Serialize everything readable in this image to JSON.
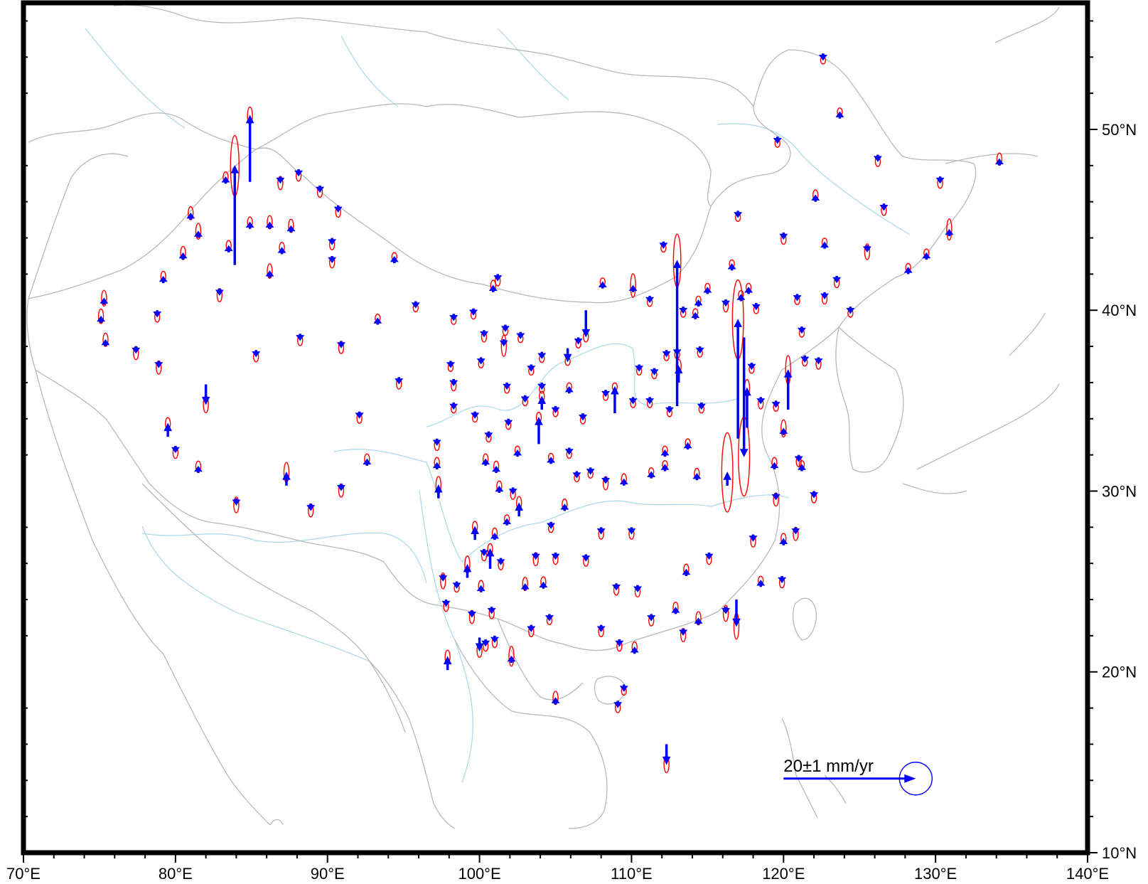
{
  "map": {
    "lon_range": [
      70,
      140
    ],
    "lat_range": [
      10,
      57
    ],
    "x_ticks": [
      {
        "lon": 70,
        "label": "70°E"
      },
      {
        "lon": 80,
        "label": "80°E"
      },
      {
        "lon": 90,
        "label": "90°E"
      },
      {
        "lon": 100,
        "label": "100°E"
      },
      {
        "lon": 110,
        "label": "110°E"
      },
      {
        "lon": 120,
        "label": "120°E"
      },
      {
        "lon": 130,
        "label": "130°E"
      },
      {
        "lon": 140,
        "label": "140°E"
      }
    ],
    "y_ticks": [
      {
        "lat": 10,
        "label": "10°N"
      },
      {
        "lat": 20,
        "label": "20°N"
      },
      {
        "lat": 30,
        "label": "30°N"
      },
      {
        "lat": 40,
        "label": "40°N"
      },
      {
        "lat": 50,
        "label": "50°N"
      }
    ],
    "colors": {
      "vector": "#0000ff",
      "ellipse": "#ff0000",
      "border": "#b8b8b8",
      "river": "#a8d8e8",
      "frame": "#000000"
    },
    "scale": {
      "label": "20±1 mm/yr",
      "lon": 120,
      "lat": 14.1,
      "length_mm_yr": 20
    }
  },
  "chart_data": {
    "type": "vector-field",
    "unit": "mm/yr",
    "description_fields": [
      "lon",
      "lat",
      "ve_mm_yr",
      "vn_mm_yr",
      "ellipse_semi_major_mm_yr"
    ],
    "stations": [
      [
        122.6,
        54.2,
        0,
        -1.0,
        0.6
      ],
      [
        123.7,
        50.6,
        0,
        1.0,
        0.6
      ],
      [
        119.6,
        49.6,
        0,
        -1.0,
        0.6
      ],
      [
        126.2,
        48.6,
        0,
        -1.0,
        0.8
      ],
      [
        130.3,
        47.4,
        0,
        -1.0,
        0.8
      ],
      [
        134.2,
        48.0,
        0,
        1.0,
        0.9
      ],
      [
        117.0,
        45.5,
        0,
        -1.0,
        0.6
      ],
      [
        122.1,
        46.0,
        0,
        1.0,
        0.8
      ],
      [
        126.6,
        45.9,
        0,
        -1.0,
        0.8
      ],
      [
        130.9,
        44.1,
        0,
        1.0,
        1.6
      ],
      [
        120.0,
        44.3,
        0,
        -1.0,
        0.8
      ],
      [
        122.7,
        43.4,
        0,
        1.0,
        0.6
      ],
      [
        125.5,
        43.6,
        0,
        -1.0,
        1.2
      ],
      [
        129.4,
        42.8,
        0,
        1.0,
        0.6
      ],
      [
        112.1,
        43.8,
        0,
        -1.0,
        0.6
      ],
      [
        128.2,
        42.0,
        0,
        1.0,
        0.6
      ],
      [
        123.5,
        41.9,
        0,
        -1.0,
        0.8
      ],
      [
        120.9,
        40.9,
        0,
        -1.0,
        0.6
      ],
      [
        122.7,
        41.0,
        0,
        -1.0,
        0.8
      ],
      [
        124.4,
        40.2,
        0,
        -1.0,
        0.6
      ],
      [
        121.2,
        39.1,
        0,
        -1.0,
        0.6
      ],
      [
        122.3,
        37.4,
        0,
        -1.0,
        0.8
      ],
      [
        121.4,
        37.5,
        0,
        -1.0,
        0.6
      ],
      [
        119.5,
        35.0,
        0,
        -1.0,
        0.6
      ],
      [
        116.6,
        42.2,
        0,
        1.0,
        0.6
      ],
      [
        115.0,
        40.9,
        0,
        1.0,
        0.6
      ],
      [
        116.2,
        40.6,
        0,
        -1.0,
        0.9
      ],
      [
        117.2,
        40.5,
        0,
        1.0,
        0.6
      ],
      [
        117.7,
        40.9,
        0,
        1.0,
        0.6
      ],
      [
        118.2,
        40.4,
        0,
        -1.0,
        0.6
      ],
      [
        117.9,
        37.1,
        0,
        -1.0,
        0.6
      ],
      [
        118.5,
        35.2,
        0,
        -1.0,
        0.8
      ],
      [
        120.3,
        34.5,
        0,
        6.0,
        2.2
      ],
      [
        120.0,
        33.1,
        0,
        1.0,
        1.3
      ],
      [
        121.0,
        32.0,
        0,
        -1.0,
        0.8
      ],
      [
        121.2,
        31.1,
        0,
        1.0,
        0.6
      ],
      [
        122.0,
        30.0,
        0,
        -1.0,
        0.8
      ],
      [
        119.4,
        31.2,
        0,
        1.0,
        0.8
      ],
      [
        119.5,
        29.9,
        0,
        -1.0,
        1.0
      ],
      [
        120.8,
        28.0,
        0,
        -1.0,
        1.0
      ],
      [
        120.0,
        27.0,
        0,
        1.0,
        0.8
      ],
      [
        119.9,
        25.3,
        0,
        -1.0,
        0.8
      ],
      [
        118.0,
        27.6,
        0,
        -1.0,
        0.9
      ],
      [
        118.5,
        24.7,
        0,
        1.0,
        0.6
      ],
      [
        117.6,
        33.5,
        0,
        6.0,
        1.3
      ],
      [
        117.0,
        32.9,
        0,
        18.0,
        6.0
      ],
      [
        116.3,
        30.3,
        0,
        2.0,
        6.0
      ],
      [
        117.4,
        38.5,
        0,
        -18.0,
        6.0
      ],
      [
        116.9,
        24.0,
        0,
        -4.0,
        2.0
      ],
      [
        116.2,
        23.6,
        0,
        -1.0,
        1.2
      ],
      [
        114.4,
        40.2,
        0,
        1.0,
        0.6
      ],
      [
        113.4,
        40.2,
        0,
        -1.0,
        0.6
      ],
      [
        114.2,
        39.5,
        0,
        1.0,
        0.6
      ],
      [
        114.5,
        38.0,
        0,
        -1.0,
        0.6
      ],
      [
        113.0,
        37.9,
        0,
        -1.0,
        0.6
      ],
      [
        112.3,
        37.8,
        0,
        -1.0,
        0.6
      ],
      [
        113.1,
        36.0,
        0,
        2.5,
        1.0
      ],
      [
        113.0,
        34.7,
        0,
        22.0,
        4.0
      ],
      [
        112.5,
        34.7,
        0,
        -1.0,
        0.6
      ],
      [
        114.6,
        34.9,
        0,
        -1.0,
        0.6
      ],
      [
        113.7,
        32.3,
        0,
        1.0,
        0.6
      ],
      [
        112.2,
        31.9,
        0,
        1.0,
        0.6
      ],
      [
        112.2,
        31.1,
        0,
        1.0,
        0.6
      ],
      [
        111.3,
        30.7,
        0,
        1.0,
        0.6
      ],
      [
        114.3,
        30.6,
        0,
        1.0,
        0.8
      ],
      [
        111.5,
        36.8,
        0,
        -1.0,
        0.6
      ],
      [
        111.2,
        35.2,
        0,
        -1.0,
        0.6
      ],
      [
        110.5,
        37.0,
        0,
        -1.0,
        0.6
      ],
      [
        111.2,
        40.8,
        0,
        -1.0,
        0.6
      ],
      [
        110.1,
        41.0,
        0,
        1.0,
        1.8
      ],
      [
        110.1,
        35.2,
        0,
        -1.0,
        0.6
      ],
      [
        108.1,
        41.2,
        0,
        1.0,
        0.6
      ],
      [
        107.0,
        40.0,
        0,
        -4.0,
        0.8
      ],
      [
        108.3,
        35.6,
        0,
        -1.0,
        0.6
      ],
      [
        108.9,
        34.3,
        0,
        4.0,
        0.6
      ],
      [
        109.5,
        30.3,
        0,
        1.0,
        0.8
      ],
      [
        108.3,
        30.8,
        0,
        -1.0,
        1.0
      ],
      [
        110.0,
        28.0,
        0,
        -1.0,
        0.8
      ],
      [
        108.0,
        28.0,
        0,
        -1.0,
        0.8
      ],
      [
        107.0,
        26.5,
        0,
        -1.0,
        0.8
      ],
      [
        109.0,
        24.9,
        0,
        -1.0,
        0.8
      ],
      [
        110.4,
        24.8,
        0,
        -1.0,
        0.8
      ],
      [
        111.3,
        23.2,
        0,
        -1.0,
        0.8
      ],
      [
        112.9,
        23.2,
        0,
        1.0,
        0.8
      ],
      [
        113.4,
        22.4,
        0,
        -1.0,
        1.0
      ],
      [
        114.4,
        22.6,
        0,
        1.0,
        1.0
      ],
      [
        115.1,
        26.6,
        0,
        -1.0,
        0.8
      ],
      [
        113.6,
        25.3,
        0,
        1.0,
        0.8
      ],
      [
        109.2,
        21.8,
        0,
        -1.0,
        0.8
      ],
      [
        110.2,
        21.0,
        0,
        1.0,
        0.8
      ],
      [
        108.0,
        22.6,
        0,
        -1.0,
        0.8
      ],
      [
        109.5,
        19.3,
        0,
        -1.0,
        0.6
      ],
      [
        109.1,
        18.4,
        0,
        -1.0,
        0.8
      ],
      [
        112.3,
        16.0,
        0,
        -3.0,
        1.3
      ],
      [
        105.0,
        18.2,
        0,
        1.0,
        1.0
      ],
      [
        102.1,
        20.5,
        0,
        1.0,
        1.5
      ],
      [
        104.6,
        23.2,
        0,
        -1.0,
        0.6
      ],
      [
        103.4,
        22.6,
        0,
        -1.0,
        0.8
      ],
      [
        104.2,
        24.6,
        0,
        1.0,
        0.8
      ],
      [
        103.0,
        24.5,
        0,
        1.0,
        1.0
      ],
      [
        105.0,
        26.6,
        0,
        -1.0,
        0.8
      ],
      [
        103.7,
        26.6,
        0,
        -1.0,
        1.0
      ],
      [
        104.7,
        28.3,
        0,
        -1.0,
        0.6
      ],
      [
        105.6,
        28.9,
        0,
        1.0,
        0.8
      ],
      [
        102.6,
        28.6,
        0,
        2.0,
        1.0
      ],
      [
        101.8,
        28.1,
        0,
        1.0,
        0.6
      ],
      [
        101.0,
        27.3,
        0,
        1.0,
        0.8
      ],
      [
        101.4,
        26.3,
        0,
        -1.0,
        0.8
      ],
      [
        100.3,
        26.8,
        0,
        -1.0,
        0.8
      ],
      [
        99.7,
        27.3,
        0,
        2.0,
        0.8
      ],
      [
        100.7,
        25.7,
        0,
        3.0,
        0.8
      ],
      [
        99.2,
        25.2,
        0,
        2.0,
        1.3
      ],
      [
        100.1,
        24.4,
        0,
        1.0,
        0.8
      ],
      [
        100.8,
        23.6,
        0,
        -1.0,
        0.8
      ],
      [
        99.5,
        23.4,
        0,
        -1.0,
        1.0
      ],
      [
        98.5,
        25.0,
        0,
        -1.0,
        0.6
      ],
      [
        97.8,
        24.0,
        0,
        -1.0,
        0.8
      ],
      [
        97.6,
        25.4,
        0,
        -1.0,
        1.2
      ],
      [
        97.9,
        20.1,
        0,
        2.0,
        1.0
      ],
      [
        100.0,
        21.9,
        0,
        -2.0,
        1.0
      ],
      [
        101.0,
        22.0,
        0,
        -1.0,
        0.8
      ],
      [
        100.4,
        21.8,
        0,
        -1.0,
        0.8
      ],
      [
        101.3,
        29.9,
        0,
        1.0,
        0.8
      ],
      [
        102.2,
        30.2,
        0,
        -1.0,
        0.8
      ],
      [
        100.4,
        31.4,
        0,
        1.0,
        0.8
      ],
      [
        101.1,
        31.0,
        0,
        1.0,
        0.8
      ],
      [
        102.5,
        31.9,
        0,
        1.0,
        0.6
      ],
      [
        103.9,
        32.6,
        0,
        4.0,
        0.8
      ],
      [
        104.7,
        31.5,
        0,
        1.0,
        0.6
      ],
      [
        105.9,
        32.4,
        0,
        -1.0,
        0.6
      ],
      [
        106.4,
        31.1,
        0,
        -1.0,
        0.6
      ],
      [
        107.3,
        31.3,
        0,
        -1.0,
        0.6
      ],
      [
        106.8,
        34.3,
        0,
        -1.0,
        0.6
      ],
      [
        105.9,
        35.4,
        0,
        1.0,
        0.6
      ],
      [
        105.0,
        34.7,
        0,
        -1.0,
        0.6
      ],
      [
        104.1,
        34.5,
        0,
        2.0,
        0.8
      ],
      [
        104.1,
        36.0,
        0,
        -1.0,
        0.6
      ],
      [
        103.0,
        35.3,
        0,
        -1.0,
        0.6
      ],
      [
        101.9,
        34.0,
        0,
        -1.0,
        0.6
      ],
      [
        100.6,
        33.3,
        0,
        -1.0,
        0.6
      ],
      [
        99.7,
        34.4,
        0,
        -1.0,
        0.6
      ],
      [
        101.8,
        36.0,
        0,
        -1.0,
        0.6
      ],
      [
        103.4,
        37.0,
        0,
        -1.0,
        0.6
      ],
      [
        104.1,
        37.7,
        0,
        -1.0,
        0.6
      ],
      [
        105.8,
        37.9,
        0,
        -2.0,
        0.6
      ],
      [
        106.5,
        38.5,
        0,
        -1.0,
        0.6
      ],
      [
        101.6,
        38.4,
        0,
        -1.0,
        1.6
      ],
      [
        100.3,
        38.9,
        0,
        -1.0,
        0.8
      ],
      [
        101.7,
        39.2,
        0,
        -1.0,
        0.6
      ],
      [
        102.7,
        38.8,
        0,
        -1.0,
        0.6
      ],
      [
        100.1,
        37.4,
        0,
        -1.0,
        0.6
      ],
      [
        98.1,
        37.2,
        0,
        -1.0,
        0.6
      ],
      [
        98.3,
        36.2,
        0,
        -1.0,
        0.8
      ],
      [
        98.3,
        34.9,
        0,
        -1.0,
        0.6
      ],
      [
        97.2,
        32.9,
        0,
        -1.0,
        0.8
      ],
      [
        97.2,
        31.2,
        0,
        1.0,
        0.8
      ],
      [
        97.3,
        29.6,
        0,
        2.0,
        1.3
      ],
      [
        98.3,
        39.8,
        0,
        -1.0,
        0.6
      ],
      [
        100.9,
        41.0,
        0,
        1.0,
        0.8
      ],
      [
        101.2,
        42.0,
        0,
        -1.0,
        0.8
      ],
      [
        99.6,
        40.1,
        0,
        -1.0,
        0.6
      ],
      [
        95.8,
        40.5,
        0,
        -1.0,
        0.6
      ],
      [
        94.4,
        42.6,
        0,
        1.0,
        0.6
      ],
      [
        93.3,
        39.2,
        0,
        1.0,
        0.6
      ],
      [
        94.7,
        36.3,
        0,
        -1.0,
        0.8
      ],
      [
        92.1,
        34.4,
        0,
        -1.0,
        0.8
      ],
      [
        92.6,
        31.4,
        0,
        1.0,
        0.8
      ],
      [
        90.9,
        30.4,
        0,
        -1.0,
        1.0
      ],
      [
        88.9,
        29.3,
        0,
        -1.0,
        1.0
      ],
      [
        87.3,
        30.3,
        0,
        2.0,
        1.5
      ],
      [
        84.0,
        29.6,
        0,
        -1.0,
        1.2
      ],
      [
        81.5,
        31.0,
        0,
        1.0,
        0.8
      ],
      [
        80.0,
        32.5,
        0,
        -1.0,
        0.9
      ],
      [
        79.5,
        33.0,
        0,
        2.0,
        0.9
      ],
      [
        82.0,
        35.9,
        0,
        -3.0,
        1.3
      ],
      [
        78.9,
        37.2,
        0,
        -1.0,
        1.0
      ],
      [
        77.4,
        38.0,
        0,
        -1.0,
        1.0
      ],
      [
        78.8,
        40.0,
        0,
        -1.0,
        0.8
      ],
      [
        75.4,
        38.0,
        0,
        1.0,
        1.0
      ],
      [
        75.1,
        39.3,
        0,
        1.0,
        1.1
      ],
      [
        75.3,
        40.3,
        0,
        1.0,
        1.2
      ],
      [
        79.2,
        41.5,
        0,
        1.0,
        0.8
      ],
      [
        80.5,
        42.8,
        0,
        1.0,
        1.0
      ],
      [
        81.0,
        45.0,
        0,
        1.0,
        1.0
      ],
      [
        81.5,
        44.0,
        0,
        1.0,
        1.2
      ],
      [
        83.3,
        47.0,
        0,
        1.0,
        0.8
      ],
      [
        84.9,
        47.1,
        0,
        10.0,
        1.3
      ],
      [
        86.9,
        47.4,
        0,
        -1.0,
        1.0
      ],
      [
        88.1,
        47.8,
        0,
        -1.0,
        0.8
      ],
      [
        89.5,
        46.9,
        0,
        -1.0,
        0.8
      ],
      [
        90.7,
        45.8,
        0,
        -1.0,
        0.8
      ],
      [
        84.9,
        44.5,
        0,
        1.0,
        0.8
      ],
      [
        86.2,
        44.5,
        0,
        1.0,
        1.0
      ],
      [
        87.6,
        44.3,
        0,
        1.0,
        1.0
      ],
      [
        87.0,
        43.1,
        0,
        1.0,
        0.8
      ],
      [
        86.2,
        41.8,
        0,
        1.0,
        1.1
      ],
      [
        83.5,
        43.2,
        0,
        1.0,
        0.8
      ],
      [
        83.9,
        42.5,
        0,
        15.0,
        4.6
      ],
      [
        82.9,
        41.2,
        0,
        -1.0,
        1.0
      ],
      [
        85.3,
        37.8,
        0,
        -1.0,
        0.8
      ],
      [
        88.2,
        38.7,
        0,
        -1.0,
        0.8
      ],
      [
        90.9,
        38.3,
        0,
        -1.0,
        0.9
      ],
      [
        90.3,
        43.0,
        0,
        -1.0,
        0.8
      ],
      [
        90.3,
        44.0,
        0,
        -1.0,
        0.8
      ]
    ]
  }
}
